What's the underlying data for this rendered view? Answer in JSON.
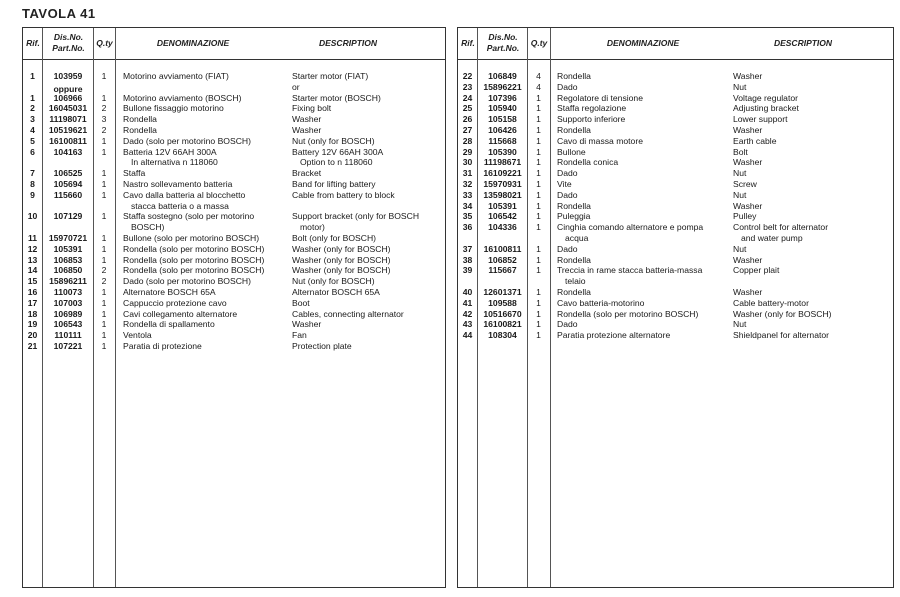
{
  "page_title": "TAVOLA 41",
  "headers": {
    "rif": "Rif.",
    "part_line1": "Dis.No.",
    "part_line2": "Part.No.",
    "qty": "Q.ty",
    "denominazione": "DENOMINAZIONE",
    "description": "DESCRIPTION"
  },
  "left_rows": [
    {
      "rif": "1",
      "part": "103959",
      "qty": "1",
      "it": "Motorino avviamento (FIAT)",
      "en": "Starter motor (FIAT)"
    },
    {
      "rif": "",
      "part": "oppure",
      "qty": "",
      "it": "",
      "en": "or"
    },
    {
      "rif": "1",
      "part": "106966",
      "qty": "1",
      "it": "Motorino avviamento (BOSCH)",
      "en": "Starter motor (BOSCH)"
    },
    {
      "rif": "2",
      "part": "16045031",
      "qty": "2",
      "it": "Bullone fissaggio motorino",
      "en": "Fixing bolt"
    },
    {
      "rif": "3",
      "part": "11198071",
      "qty": "3",
      "it": "Rondella",
      "en": "Washer"
    },
    {
      "rif": "4",
      "part": "10519621",
      "qty": "2",
      "it": "Rondella",
      "en": "Washer"
    },
    {
      "rif": "5",
      "part": "16100811",
      "qty": "1",
      "it": "Dado (solo per motorino BOSCH)",
      "en": "Nut (only for BOSCH)"
    },
    {
      "rif": "6",
      "part": "104163",
      "qty": "1",
      "it": "Batteria 12V   66AH   300A",
      "en": "Battery 12V   66AH   300A",
      "it2": "In alternativa n  118060",
      "en2": "Option to n  118060"
    },
    {
      "rif": "7",
      "part": "106525",
      "qty": "1",
      "it": "Staffa",
      "en": "Bracket"
    },
    {
      "rif": "8",
      "part": "105694",
      "qty": "1",
      "it": "Nastro sollevamento batteria",
      "en": "Band for lifting battery"
    },
    {
      "rif": "9",
      "part": "115660",
      "qty": "1",
      "it": "Cavo dalla batteria al blocchetto",
      "en": "Cable from battery to block",
      "it2": "stacca batteria o a massa"
    },
    {
      "rif": "10",
      "part": "107129",
      "qty": "1",
      "it": "Staffa sostegno (solo per motorino",
      "en": "Support bracket (only for BOSCH",
      "it2": "BOSCH)",
      "en2": "motor)"
    },
    {
      "rif": "11",
      "part": "15970721",
      "qty": "1",
      "it": "Bullone (solo per motorino BOSCH)",
      "en": "Bolt (only for BOSCH)"
    },
    {
      "rif": "12",
      "part": "105391",
      "qty": "1",
      "it": "Rondella (solo per motorino BOSCH)",
      "en": "Washer (only for BOSCH)"
    },
    {
      "rif": "13",
      "part": "106853",
      "qty": "1",
      "it": "Rondella (solo per motorino BOSCH)",
      "en": "Washer (only for BOSCH)"
    },
    {
      "rif": "14",
      "part": "106850",
      "qty": "2",
      "it": "Rondella (solo per motorino BOSCH)",
      "en": "Washer (only for BOSCH)"
    },
    {
      "rif": "15",
      "part": "15896211",
      "qty": "2",
      "it": "Dado (solo per motorino BOSCH)",
      "en": "Nut (only for BOSCH)"
    },
    {
      "rif": "16",
      "part": "110073",
      "qty": "1",
      "it": "Alternatore BOSCH 65A",
      "en": "Alternator BOSCH 65A"
    },
    {
      "rif": "17",
      "part": "107003",
      "qty": "1",
      "it": "Cappuccio protezione cavo",
      "en": "Boot"
    },
    {
      "rif": "18",
      "part": "106989",
      "qty": "1",
      "it": "Cavi collegamento alternatore",
      "en": "Cables, connecting alternator"
    },
    {
      "rif": "19",
      "part": "106543",
      "qty": "1",
      "it": "Rondella di spallamento",
      "en": "Washer"
    },
    {
      "rif": "20",
      "part": "110111",
      "qty": "1",
      "it": "Ventola",
      "en": "Fan"
    },
    {
      "rif": "21",
      "part": "107221",
      "qty": "1",
      "it": "Paratia di protezione",
      "en": "Protection plate"
    }
  ],
  "right_rows": [
    {
      "rif": "22",
      "part": "106849",
      "qty": "4",
      "it": "Rondella",
      "en": "Washer"
    },
    {
      "rif": "23",
      "part": "15896221",
      "qty": "4",
      "it": "Dado",
      "en": "Nut"
    },
    {
      "rif": "24",
      "part": "107396",
      "qty": "1",
      "it": "Regolatore di tensione",
      "en": "Voltage regulator"
    },
    {
      "rif": "25",
      "part": "105940",
      "qty": "1",
      "it": "Staffa regolazione",
      "en": "Adjusting bracket"
    },
    {
      "rif": "26",
      "part": "105158",
      "qty": "1",
      "it": "Supporto inferiore",
      "en": "Lower support"
    },
    {
      "rif": "27",
      "part": "106426",
      "qty": "1",
      "it": "Rondella",
      "en": "Washer"
    },
    {
      "rif": "28",
      "part": "115668",
      "qty": "1",
      "it": "Cavo di massa motore",
      "en": "Earth cable"
    },
    {
      "rif": "29",
      "part": "105390",
      "qty": "1",
      "it": "Bullone",
      "en": "Bolt"
    },
    {
      "rif": "30",
      "part": "11198671",
      "qty": "1",
      "it": "Rondella conica",
      "en": "Washer"
    },
    {
      "rif": "31",
      "part": "16109221",
      "qty": "1",
      "it": "Dado",
      "en": "Nut"
    },
    {
      "rif": "32",
      "part": "15970931",
      "qty": "1",
      "it": "Vite",
      "en": "Screw"
    },
    {
      "rif": "33",
      "part": "13598021",
      "qty": "1",
      "it": "Dado",
      "en": "Nut"
    },
    {
      "rif": "34",
      "part": "105391",
      "qty": "1",
      "it": "Rondella",
      "en": "Washer"
    },
    {
      "rif": "35",
      "part": "106542",
      "qty": "1",
      "it": "Puleggia",
      "en": "Pulley"
    },
    {
      "rif": "36",
      "part": "104336",
      "qty": "1",
      "it": "Cinghia comando alternatore e pompa",
      "en": "Control belt for alternator",
      "it2": "acqua",
      "en2": "and water pump"
    },
    {
      "rif": "37",
      "part": "16100811",
      "qty": "1",
      "it": "Dado",
      "en": "Nut"
    },
    {
      "rif": "38",
      "part": "106852",
      "qty": "1",
      "it": "Rondella",
      "en": "Washer"
    },
    {
      "rif": "39",
      "part": "115667",
      "qty": "1",
      "it": "Treccia in rame stacca batteria-massa",
      "en": "Copper plait",
      "it2": "telaio"
    },
    {
      "rif": "40",
      "part": "12601371",
      "qty": "1",
      "it": "Rondella",
      "en": "Washer"
    },
    {
      "rif": "41",
      "part": "109588",
      "qty": "1",
      "it": "Cavo batteria-motorino",
      "en": "Cable battery-motor"
    },
    {
      "rif": "42",
      "part": "10516670",
      "qty": "1",
      "it": "Rondella (solo per motorino BOSCH)",
      "en": "Washer (only for BOSCH)"
    },
    {
      "rif": "43",
      "part": "16100821",
      "qty": "1",
      "it": "Dado",
      "en": "Nut"
    },
    {
      "rif": "44",
      "part": "108304",
      "qty": "1",
      "it": "Paratia protezione alternatore",
      "en": "Shieldpanel for alternator"
    }
  ]
}
